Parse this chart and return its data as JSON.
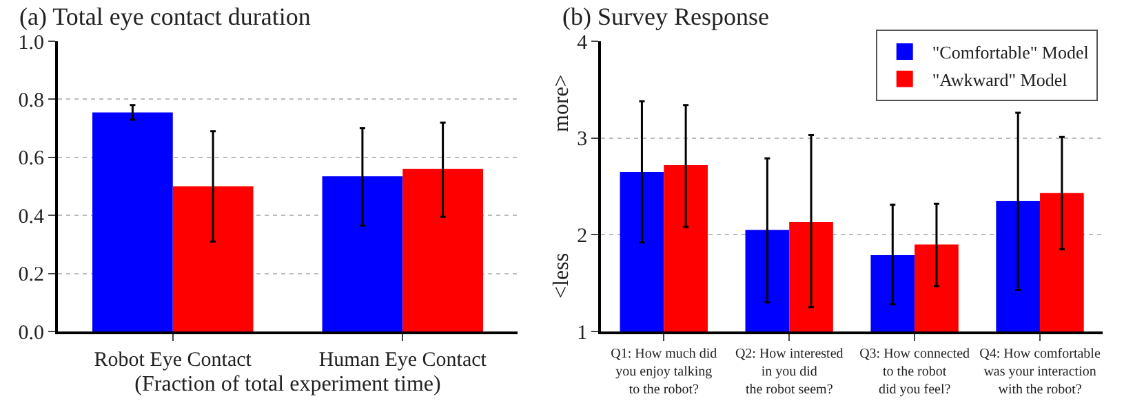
{
  "chart_data": [
    {
      "type": "bar",
      "title": "(a) Total eye contact duration",
      "xlabel": "(Fraction of total experiment time)",
      "categories": [
        "Robot Eye Contact",
        "Human Eye Contact"
      ],
      "series": [
        {
          "color": "#0000ff",
          "values": [
            0.755,
            0.535
          ],
          "errors": [
            [
              0.73,
              0.78
            ],
            [
              0.365,
              0.7
            ]
          ]
        },
        {
          "color": "#ff0000",
          "values": [
            0.5,
            0.56
          ],
          "errors": [
            [
              0.31,
              0.69
            ],
            [
              0.395,
              0.72
            ]
          ]
        }
      ],
      "ylim": [
        0,
        1
      ],
      "yticks": [
        {
          "value": 0,
          "label": "0.0"
        },
        0.2,
        0.4,
        0.6,
        0.8,
        {
          "value": 1,
          "label": "1.0"
        }
      ],
      "grid": "y"
    },
    {
      "type": "bar",
      "title": "(b) Survey Response",
      "ylabel": "<less more>",
      "categories": [
        "Q1: How much did\nyou enjoy talking\nto the robot?",
        "Q2: How interested\nin you did\nthe robot seem?",
        "Q3: How connected\nto the robot\ndid you feel?",
        "Q4: How comfortable\nwas your interaction\nwith the robot?"
      ],
      "series": [
        {
          "name": "\"Comfortable\" Model",
          "color": "#0000ff",
          "values": [
            2.65,
            2.05,
            1.79,
            2.35
          ],
          "errors": [
            [
              1.92,
              3.38
            ],
            [
              1.3,
              2.79
            ],
            [
              1.28,
              2.31
            ],
            [
              1.43,
              3.26
            ]
          ]
        },
        {
          "name": "\"Awkward\" Model",
          "color": "#ff0000",
          "values": [
            2.72,
            2.13,
            1.9,
            2.43
          ],
          "errors": [
            [
              2.08,
              3.34
            ],
            [
              1.25,
              3.03
            ],
            [
              1.47,
              2.32
            ],
            [
              1.85,
              3.01
            ]
          ]
        }
      ],
      "ylim": [
        1,
        4
      ],
      "yticks": [
        1,
        2,
        3,
        4
      ],
      "grid": "y",
      "legend": "top right"
    }
  ]
}
